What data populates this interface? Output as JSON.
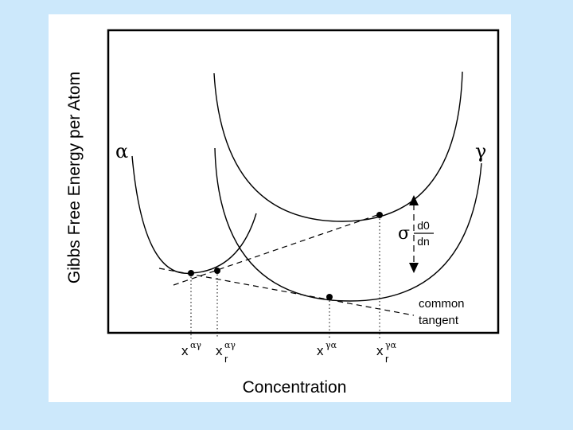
{
  "y_axis_label": "Gibbs Free Energy per Atom",
  "x_axis_label": "Concentration",
  "phase_alpha": "α",
  "phase_gamma": "γ",
  "sigma_symbol": "σ",
  "fraction_numerator": "d0",
  "fraction_denominator": "dn",
  "common_tangent_line1": "common",
  "common_tangent_line2": "tangent",
  "ticks": {
    "x_ag": {
      "base": "x",
      "sup": "αγ",
      "sub": ""
    },
    "x_r_ag": {
      "base": "x",
      "sup": "αγ",
      "sub": "r"
    },
    "x_ga": {
      "base": "x",
      "sup": "γα",
      "sub": ""
    },
    "x_r_ga": {
      "base": "x",
      "sup": "γα",
      "sub": "r"
    }
  },
  "colors": {
    "background": "#cce8fb",
    "panel": "#ffffff",
    "ink": "#000000"
  }
}
